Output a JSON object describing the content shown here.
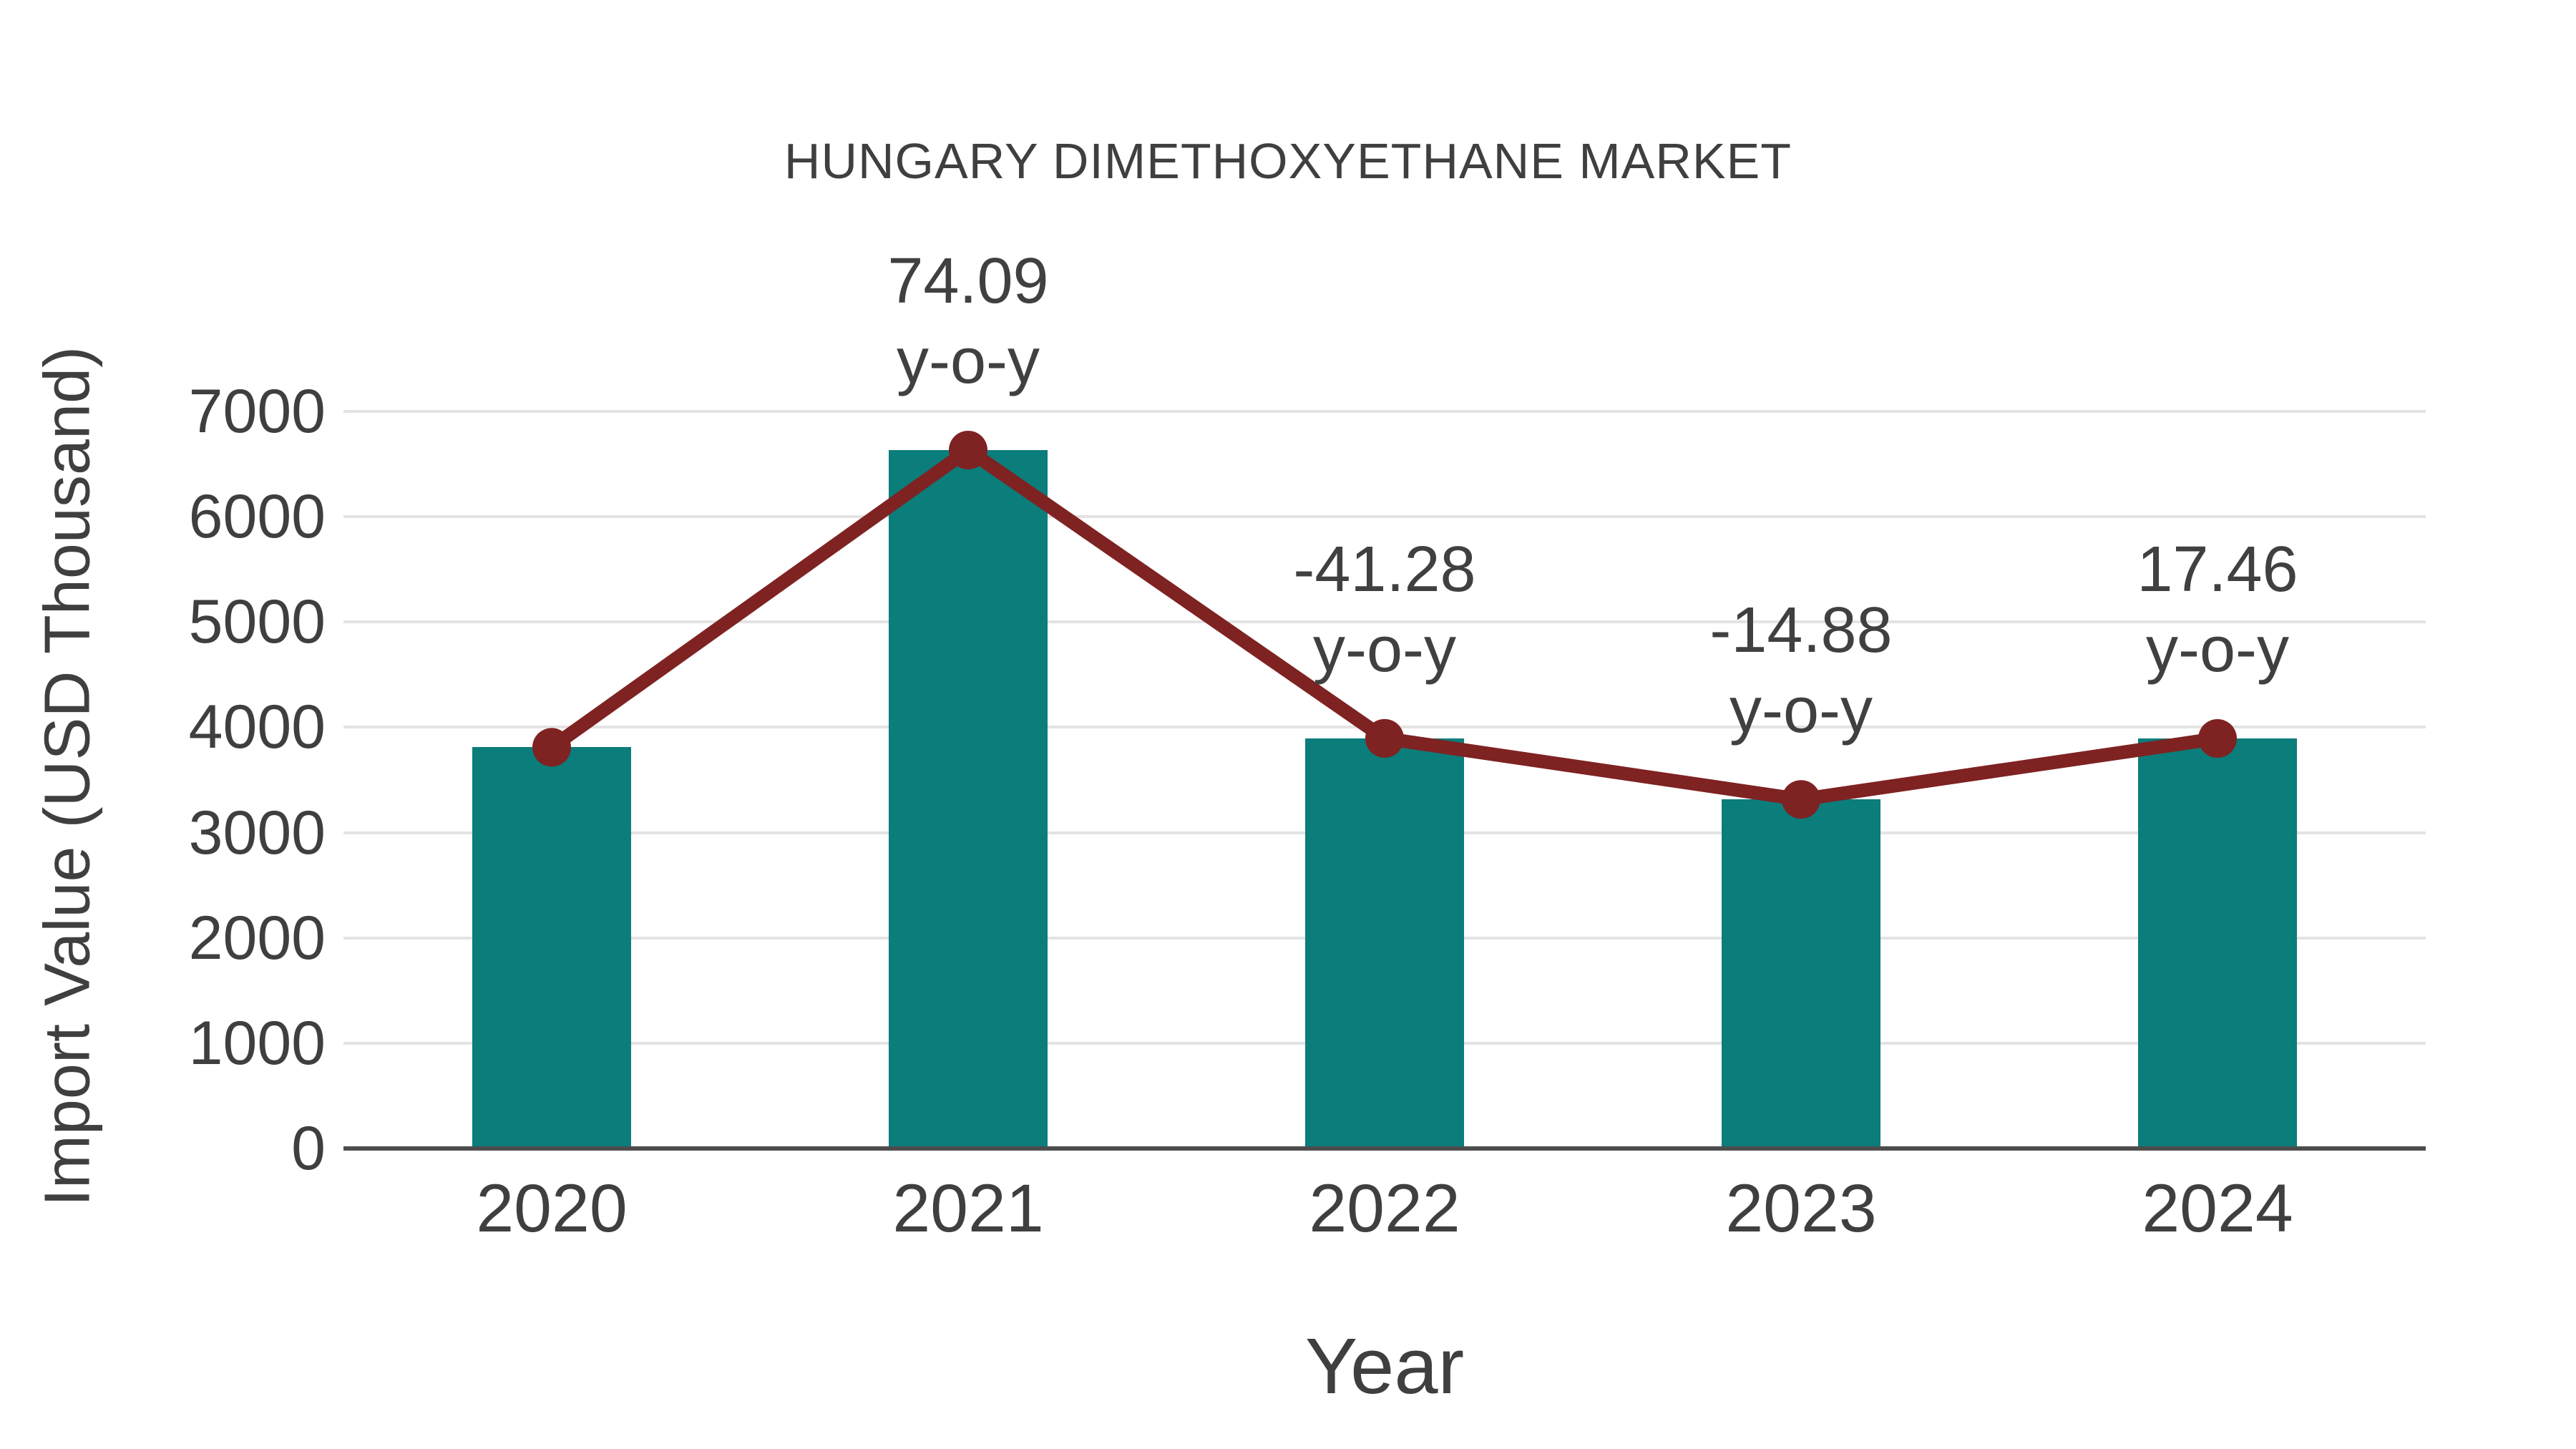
{
  "page": {
    "background": "#ffffff"
  },
  "colors": {
    "bar": "#0b7d7b",
    "line": "#7f2222",
    "marker": "#7f2222",
    "grid": "#e3e3e3",
    "axis": "#4d4d4d",
    "text": "#3f3f3f"
  },
  "chart_data": {
    "type": "bar",
    "title": "HUNGARY DIMETHOXYETHANE MARKET",
    "xlabel": "Year",
    "ylabel": "Import Value (USD Thousand)",
    "categories": [
      "2020",
      "2021",
      "2022",
      "2023",
      "2024"
    ],
    "series": [
      {
        "name": "Import Value bars",
        "type": "bar",
        "values": [
          3810,
          6633,
          3895,
          3315,
          3894
        ]
      },
      {
        "name": "Import Value trend line",
        "type": "line",
        "values": [
          3810,
          6633,
          3895,
          3315,
          3894
        ]
      }
    ],
    "annotations": [
      {
        "category": "2021",
        "line1": "74.09",
        "line2": "y-o-y"
      },
      {
        "category": "2022",
        "line1": "-41.28",
        "line2": "y-o-y"
      },
      {
        "category": "2023",
        "line1": "-14.88",
        "line2": "y-o-y"
      },
      {
        "category": "2024",
        "line1": "17.46",
        "line2": "y-o-y"
      }
    ],
    "ylim": [
      0,
      7000
    ],
    "ytick_step": 1000,
    "yticks": [
      "0",
      "1000",
      "2000",
      "3000",
      "4000",
      "5000",
      "6000",
      "7000"
    ],
    "grid": true,
    "legend": false
  }
}
